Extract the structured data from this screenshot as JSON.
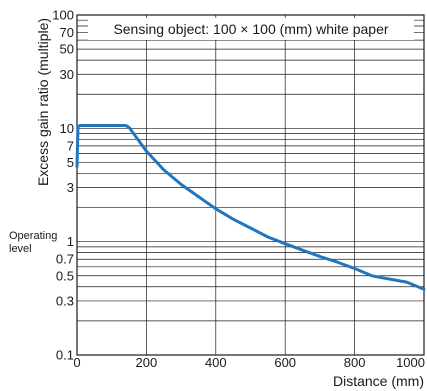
{
  "chart_data": {
    "type": "line",
    "title": "Sensing object: 100 × 100 (mm) white paper",
    "xlabel": "Distance (mm)",
    "ylabel": "Excess gain ratio (multiple)",
    "xlim": [
      0,
      1000
    ],
    "ylim": [
      0.1,
      100
    ],
    "yscale": "log",
    "grid": true,
    "x_ticks": [
      0,
      200,
      400,
      600,
      800,
      1000
    ],
    "x_tick_labels": [
      "0",
      "200",
      "400",
      "600",
      "800",
      "1000"
    ],
    "y_ticks": [
      0.1,
      0.3,
      0.5,
      0.7,
      1,
      3,
      5,
      7,
      10,
      30,
      50,
      70,
      100
    ],
    "y_tick_labels": [
      "0.1",
      "0.3",
      "0.5",
      "0.7",
      "1",
      "3",
      "5",
      "7",
      "10",
      "30",
      "50",
      "70",
      "100"
    ],
    "annotation": {
      "label": "Operating level",
      "lines": [
        "Operating",
        "level"
      ],
      "y": 1
    },
    "line_color": "#2176bd",
    "series": [
      {
        "x": [
          0,
          3,
          8,
          30,
          60,
          100,
          140,
          150,
          200,
          250,
          300,
          350,
          400,
          450,
          500,
          550,
          600,
          650,
          700,
          750,
          800,
          850,
          880,
          950,
          1000
        ],
        "y": [
          4.6,
          10.3,
          10.6,
          10.6,
          10.6,
          10.6,
          10.6,
          10.2,
          6.3,
          4.3,
          3.2,
          2.5,
          1.95,
          1.58,
          1.32,
          1.1,
          0.96,
          0.84,
          0.74,
          0.66,
          0.58,
          0.5,
          0.48,
          0.44,
          0.38
        ]
      }
    ]
  }
}
